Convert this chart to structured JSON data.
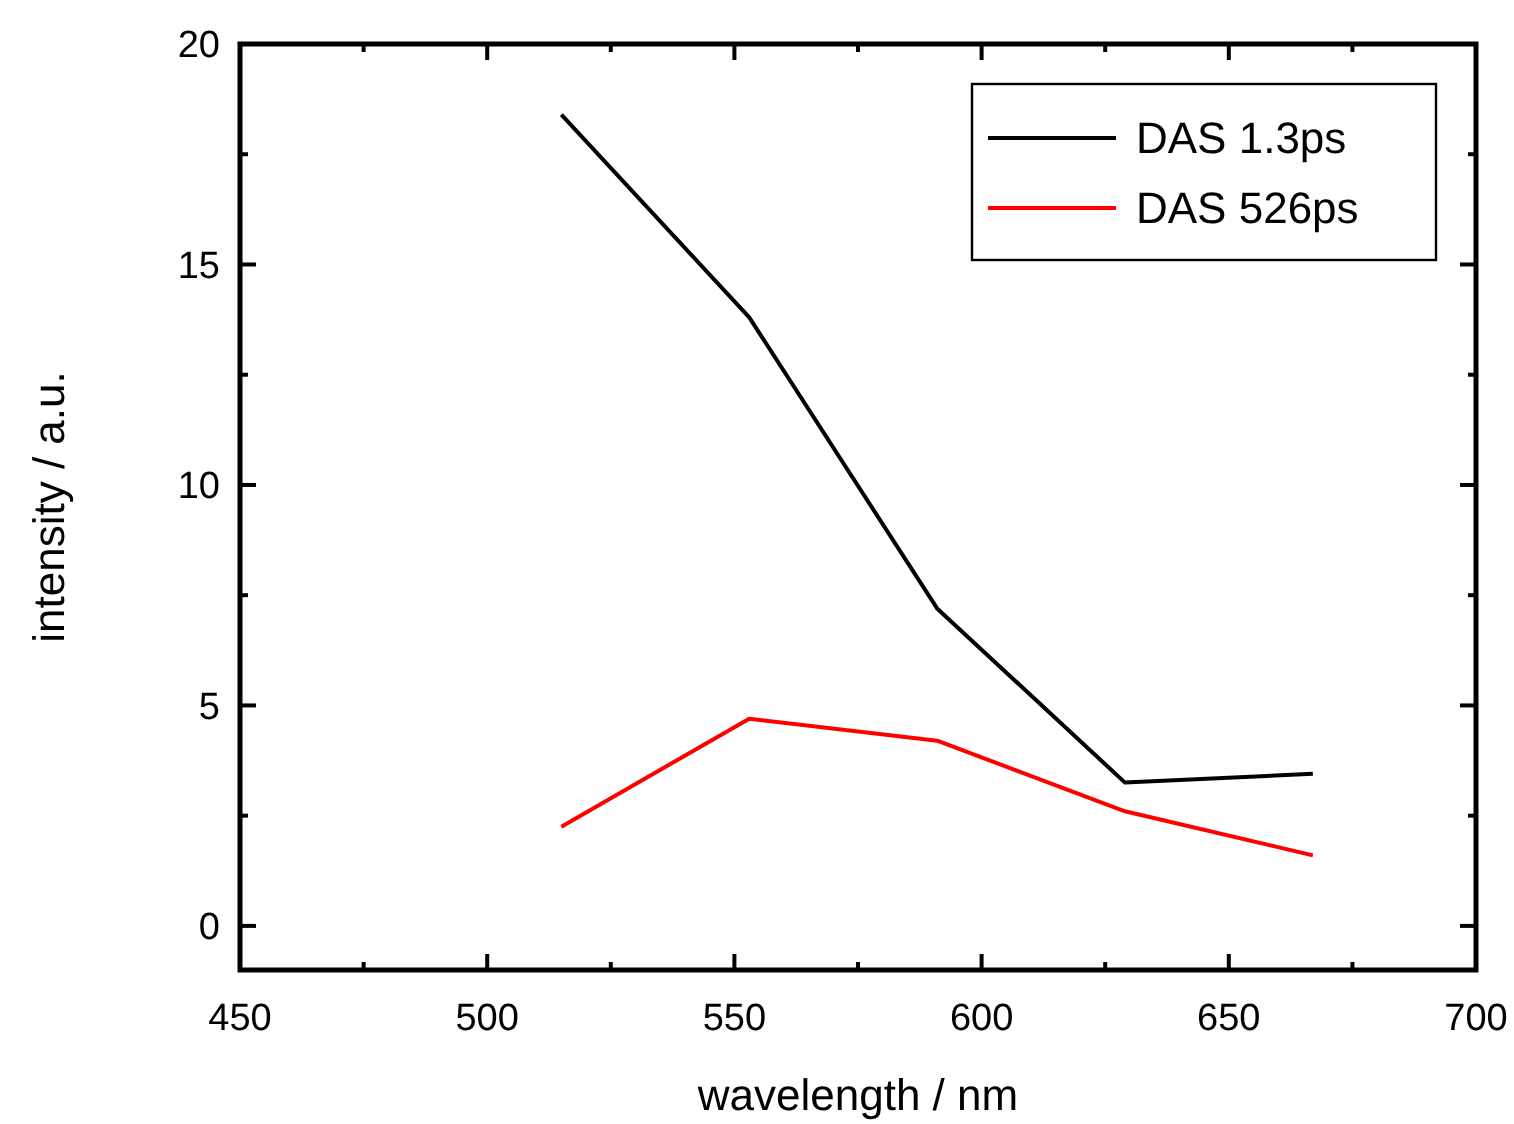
{
  "chart_data": {
    "type": "line",
    "xlabel": "wavelength / nm",
    "ylabel": "intensity / a.u.",
    "x": [
      515,
      553,
      591,
      629,
      667
    ],
    "series": [
      {
        "name": "DAS 1.3ps",
        "color": "#000000",
        "values": [
          18.4,
          13.8,
          7.2,
          3.25,
          3.45
        ]
      },
      {
        "name": "DAS 526ps",
        "color": "#ff0000",
        "values": [
          2.25,
          4.7,
          4.2,
          2.6,
          1.6
        ]
      }
    ],
    "xlim": [
      450,
      700
    ],
    "ylim": [
      -1,
      20
    ],
    "xticks": [
      450,
      {
        "value": 475,
        "label": null
      },
      500,
      {
        "value": 525,
        "label": null
      },
      550,
      {
        "value": 575,
        "label": null
      },
      600,
      {
        "value": 625,
        "label": null
      },
      650,
      {
        "value": 675,
        "label": null
      },
      700
    ],
    "yticks": [
      0,
      {
        "value": 2.5,
        "label": null
      },
      5,
      {
        "value": 7.5,
        "label": null
      },
      10,
      {
        "value": 12.5,
        "label": null
      },
      15,
      {
        "value": 17.5,
        "label": null
      },
      20
    ],
    "legend": "top right",
    "grid": false,
    "marker": "none",
    "line_style": "solid"
  }
}
